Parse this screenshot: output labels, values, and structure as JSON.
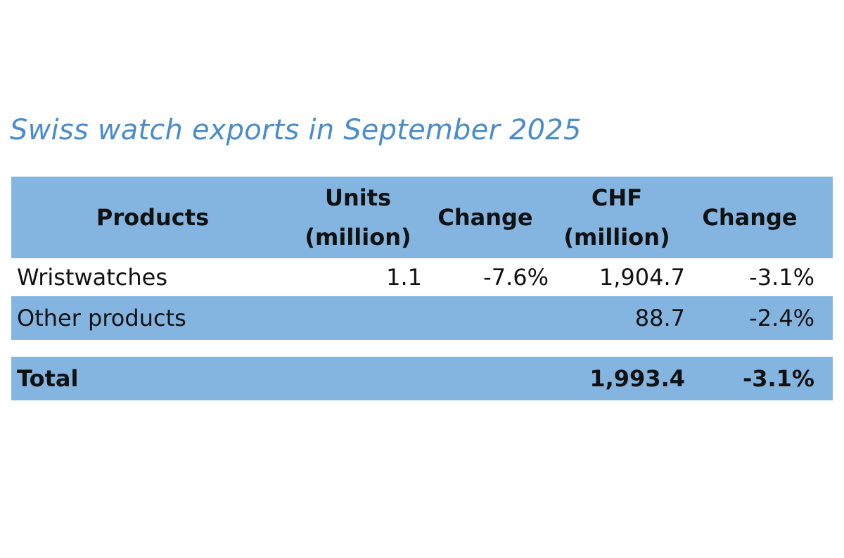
{
  "title": "Swiss watch exports in September 2025",
  "colors": {
    "title": "#4a8cc9",
    "band": "#84b5e0",
    "text": "#111111"
  },
  "chart_data": {
    "type": "table",
    "title": "Swiss watch exports in September 2025",
    "columns": [
      {
        "key": "products",
        "lines": [
          "Products"
        ]
      },
      {
        "key": "units",
        "lines": [
          "Units",
          "(million)"
        ]
      },
      {
        "key": "units_change",
        "lines": [
          "Change"
        ]
      },
      {
        "key": "chf",
        "lines": [
          "CHF",
          "(million)"
        ]
      },
      {
        "key": "chf_change",
        "lines": [
          "Change"
        ]
      }
    ],
    "rows": [
      {
        "products": "Wristwatches",
        "units": "1.1",
        "units_change": "-7.6%",
        "chf": "1,904.7",
        "chf_change": "-3.1%"
      },
      {
        "products": "Other products",
        "units": "",
        "units_change": "",
        "chf": "88.7",
        "chf_change": "-2.4%"
      }
    ],
    "total": {
      "products": "Total",
      "units": "",
      "units_change": "",
      "chf": "1,993.4",
      "chf_change": "-3.1%"
    }
  }
}
